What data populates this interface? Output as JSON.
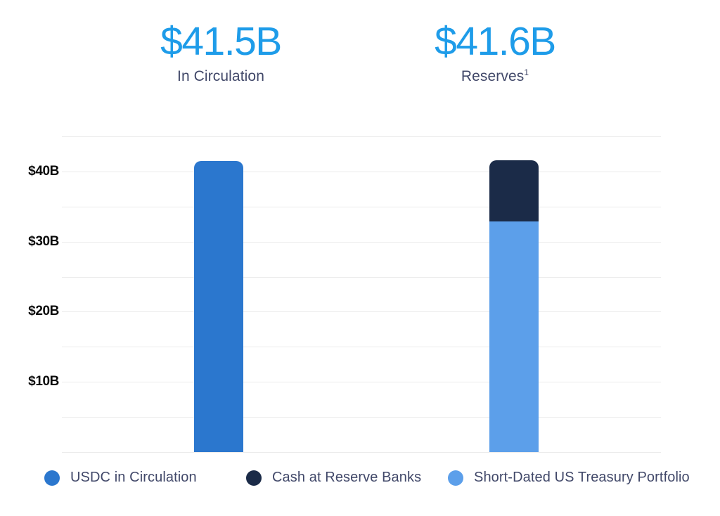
{
  "page": {
    "background": "#ffffff"
  },
  "colors": {
    "headline_value": "#1E9CE9",
    "body_text": "#414869",
    "axis_label": "#0A0A0A",
    "gridline": "#EBEBEB"
  },
  "headline_stats": [
    {
      "value": "$41.5B",
      "label": "In Circulation",
      "superscript": ""
    },
    {
      "value": "$41.6B",
      "label": "Reserves",
      "superscript": "1"
    }
  ],
  "chart_data": {
    "type": "bar",
    "stacked": true,
    "grid": true,
    "legend_position": "bottom",
    "ylim": [
      0,
      45
    ],
    "gridline_step": 5,
    "yticks": [
      {
        "value": 40,
        "label": "$40B"
      },
      {
        "value": 30,
        "label": "$30B"
      },
      {
        "value": 20,
        "label": "$20B"
      },
      {
        "value": 10,
        "label": "$10B"
      }
    ],
    "series": [
      {
        "name": "USDC in Circulation",
        "color": "#2B77CE"
      },
      {
        "name": "Cash at Reserve Banks",
        "color": "#1B2B48"
      },
      {
        "name": "Short-Dated US Treasury Portfolio",
        "color": "#5C9FEA"
      }
    ],
    "bars": [
      {
        "name": "In Circulation",
        "total_label": "$41.5B",
        "segments": [
          {
            "series": "USDC in Circulation",
            "value": 41.5
          }
        ]
      },
      {
        "name": "Reserves",
        "total_label": "$41.6B",
        "segments": [
          {
            "series": "Short-Dated US Treasury Portfolio",
            "value": 32.9
          },
          {
            "series": "Cash at Reserve Banks",
            "value": 8.7
          }
        ]
      }
    ]
  }
}
